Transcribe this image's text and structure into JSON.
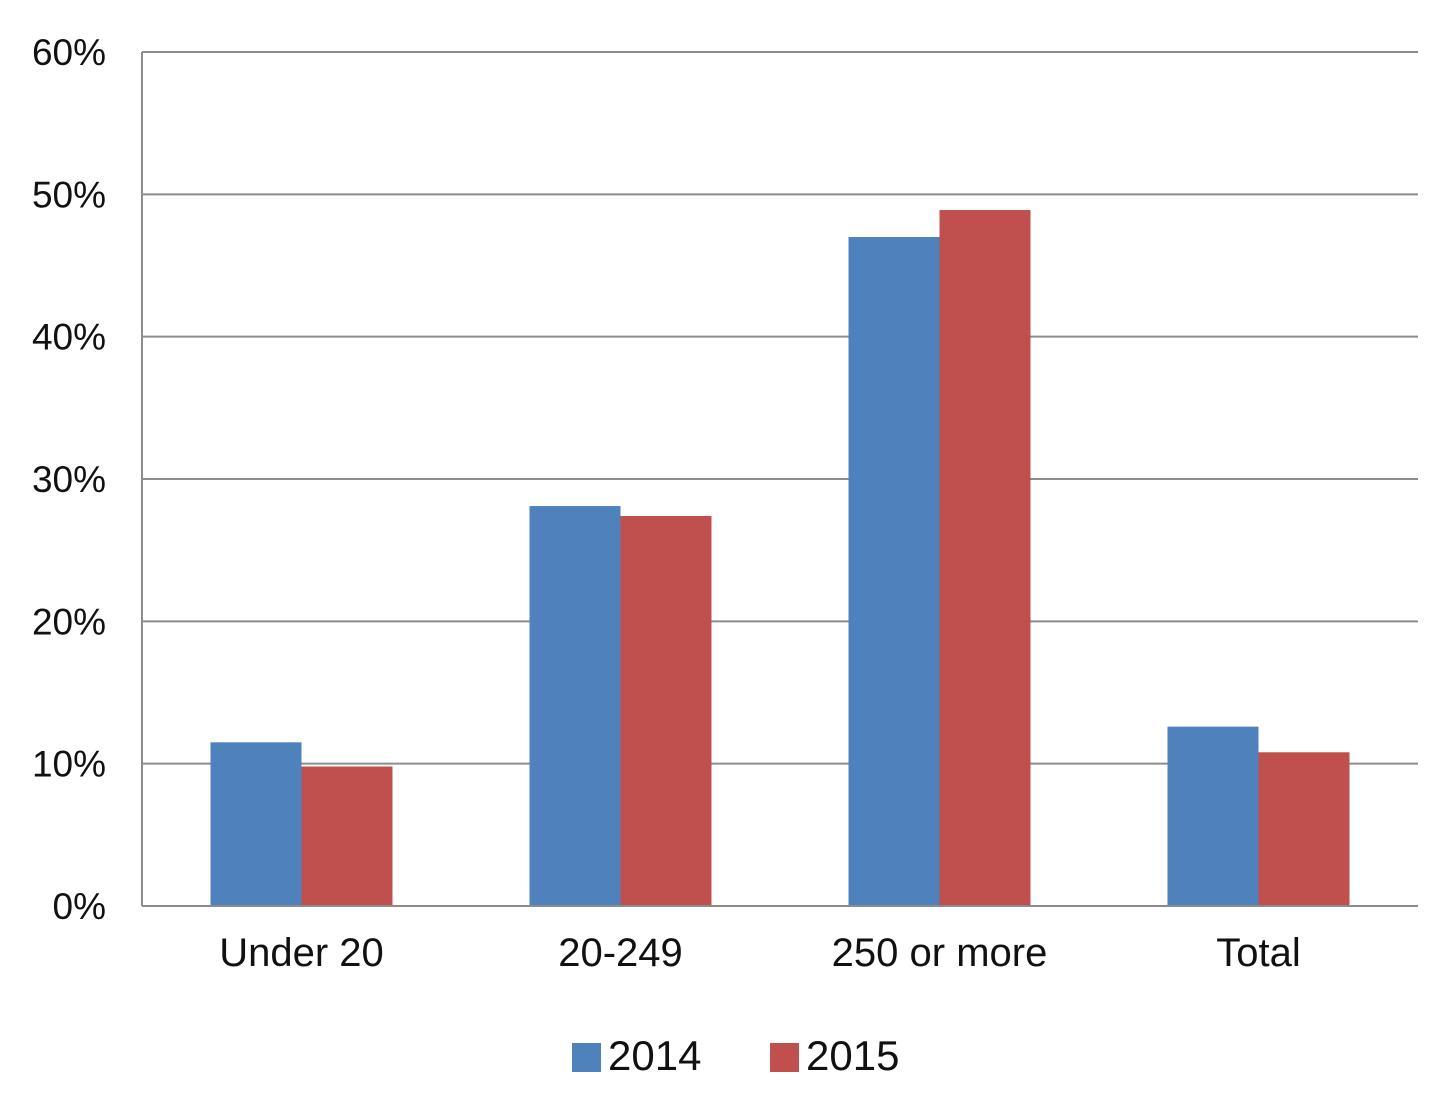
{
  "chart_data": {
    "type": "bar",
    "categories": [
      "Under 20",
      "20-249",
      "250 or more",
      "Total"
    ],
    "series": [
      {
        "name": "2014",
        "values": [
          11.5,
          28.1,
          47.0,
          12.6
        ],
        "color": "#4F81BD"
      },
      {
        "name": "2015",
        "values": [
          9.8,
          27.4,
          48.9,
          10.8
        ],
        "color": "#C0504D"
      }
    ],
    "yticks": [
      "0%",
      "10%",
      "20%",
      "30%",
      "40%",
      "50%",
      "60%"
    ],
    "ylim": [
      0,
      60
    ],
    "grid": true,
    "legend_position": "bottom",
    "title": "",
    "xlabel": "",
    "ylabel": ""
  }
}
